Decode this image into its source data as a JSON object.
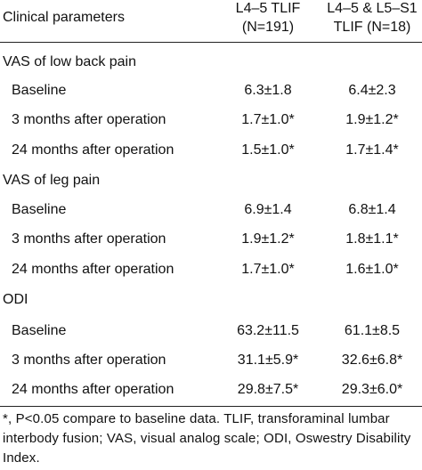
{
  "header": {
    "param_label": "Clinical parameters",
    "col1_line1": "L4–5 TLIF",
    "col1_line2": "(N=191)",
    "col2_line1": "L4–5 & L5–S1",
    "col2_line2": "TLIF (N=18)"
  },
  "sections": [
    {
      "title": "VAS of low back pain",
      "rows": [
        {
          "label": "Baseline",
          "col1": "6.3±1.8",
          "col2": "6.4±2.3"
        },
        {
          "label": "3 months after operation",
          "col1": "1.7±1.0*",
          "col2": "1.9±1.2*"
        },
        {
          "label": "24 months after operation",
          "col1": "1.5±1.0*",
          "col2": "1.7±1.4*"
        }
      ]
    },
    {
      "title": "VAS of leg pain",
      "rows": [
        {
          "label": "Baseline",
          "col1": "6.9±1.4",
          "col2": "6.8±1.4"
        },
        {
          "label": "3 months after operation",
          "col1": "1.9±1.2*",
          "col2": "1.8±1.1*"
        },
        {
          "label": "24 months after operation",
          "col1": "1.7±1.0*",
          "col2": "1.6±1.0*"
        }
      ]
    },
    {
      "title": "ODI",
      "rows": [
        {
          "label": "Baseline",
          "col1": "63.2±11.5",
          "col2": "61.1±8.5"
        },
        {
          "label": "3 months after operation",
          "col1": "31.1±5.9*",
          "col2": "32.6±6.8*"
        },
        {
          "label": "24 months after operation",
          "col1": "29.8±7.5*",
          "col2": "29.3±6.0*"
        }
      ]
    }
  ],
  "footnote": "*, P<0.05 compare to baseline data. TLIF, transforaminal lumbar interbody fusion; VAS, visual analog scale; ODI, Oswestry Disability Index."
}
